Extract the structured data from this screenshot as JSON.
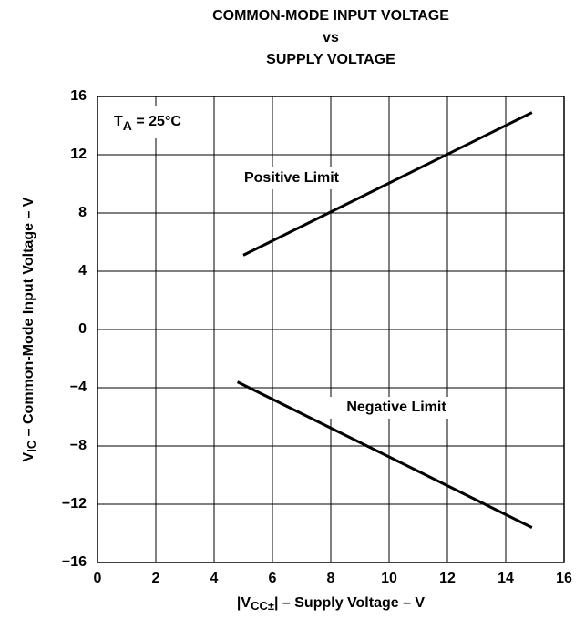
{
  "chart_data": {
    "type": "line",
    "title": [
      "COMMON-MODE INPUT VOLTAGE",
      "vs",
      "SUPPLY VOLTAGE"
    ],
    "xlabel": {
      "main": "|V",
      "sub": "CC±",
      "rest": "| – Supply Voltage – V"
    },
    "ylabel": {
      "main": "V",
      "sub": "IC",
      "rest": " – Common-Mode Input Voltage – V"
    },
    "annotation": {
      "main": "T",
      "sub": "A",
      "rest": " = 25°C"
    },
    "xlim": [
      0,
      16
    ],
    "ylim": [
      -16,
      16
    ],
    "xticks": [
      0,
      2,
      4,
      6,
      8,
      10,
      12,
      14,
      16
    ],
    "yticks": [
      {
        "value": -16,
        "label": "−16"
      },
      {
        "value": -12,
        "label": "−12"
      },
      {
        "value": -8,
        "label": "−8"
      },
      {
        "value": -4,
        "label": "−4"
      },
      0,
      4,
      8,
      12,
      16
    ],
    "grid": true,
    "series": [
      {
        "name": "Positive Limit",
        "color": "#000000",
        "x": [
          5,
          14.9
        ],
        "values": [
          5.1,
          14.9
        ]
      },
      {
        "name": "Negative Limit",
        "color": "#000000",
        "x": [
          4.8,
          14.9
        ],
        "values": [
          -3.6,
          -13.6
        ]
      }
    ]
  }
}
